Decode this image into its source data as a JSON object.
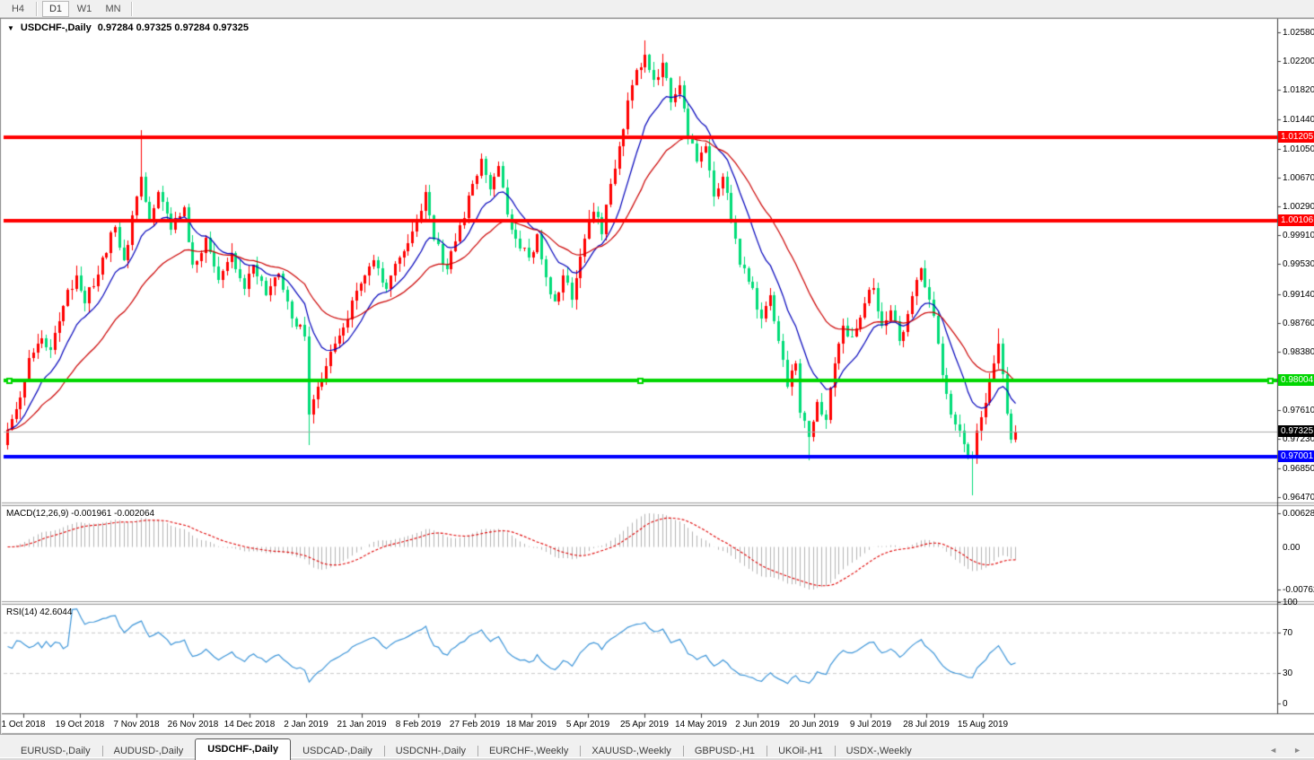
{
  "toolbar": {
    "timeframes": [
      "H4",
      "D1",
      "W1",
      "MN"
    ],
    "active": "D1"
  },
  "title": {
    "collapse_icon": "▼",
    "symbol": "USDCHF-,Daily",
    "quote": "0.97284 0.97325 0.97284 0.97325"
  },
  "price_axis": {
    "labels": [
      {
        "text": "1.02580",
        "price": 1.0258
      },
      {
        "text": "1.02200",
        "price": 1.022
      },
      {
        "text": "1.01820",
        "price": 1.0182
      },
      {
        "text": "1.01440",
        "price": 1.0144
      },
      {
        "text": "1.01050",
        "price": 1.0105
      },
      {
        "text": "1.00670",
        "price": 1.0067
      },
      {
        "text": "1.00290",
        "price": 1.0029
      },
      {
        "text": "0.99910",
        "price": 0.9991
      },
      {
        "text": "0.99530",
        "price": 0.9953
      },
      {
        "text": "0.99140",
        "price": 0.9914
      },
      {
        "text": "0.98760",
        "price": 0.9876
      },
      {
        "text": "0.98380",
        "price": 0.9838
      },
      {
        "text": "0.97610",
        "price": 0.9761
      },
      {
        "text": "0.97230",
        "price": 0.9723
      },
      {
        "text": "0.96850",
        "price": 0.9685
      },
      {
        "text": "0.96470",
        "price": 0.9647
      }
    ]
  },
  "price_tags": [
    {
      "text": "1.01205",
      "price": 1.01205,
      "bg": "#ff0000",
      "fg": "#ffffff"
    },
    {
      "text": "1.00106",
      "price": 1.00106,
      "bg": "#ff0000",
      "fg": "#ffffff"
    },
    {
      "text": "0.98004",
      "price": 0.98004,
      "bg": "#00d600",
      "fg": "#ffffff"
    },
    {
      "text": "0.97001",
      "price": 0.97001,
      "bg": "#0000ff",
      "fg": "#ffffff"
    },
    {
      "text": "0.97325",
      "price": 0.97325,
      "bg": "#000000",
      "fg": "#ffffff"
    }
  ],
  "hlines": [
    {
      "price": 1.01205,
      "color": "#ff0000",
      "width": 4,
      "selected": false
    },
    {
      "price": 1.00106,
      "color": "#ff0000",
      "width": 4,
      "selected": false
    },
    {
      "price": 0.98004,
      "color": "#00d600",
      "width": 4,
      "selected": true
    },
    {
      "price": 0.97001,
      "color": "#0000ff",
      "width": 4,
      "selected": false
    }
  ],
  "current_price_line": {
    "price": 0.97325,
    "color": "#aaaaaa"
  },
  "date_axis": [
    "1 Oct 2018",
    "19 Oct 2018",
    "7 Nov 2018",
    "26 Nov 2018",
    "14 Dec 2018",
    "2 Jan 2019",
    "21 Jan 2019",
    "8 Feb 2019",
    "27 Feb 2019",
    "18 Mar 2019",
    "5 Apr 2019",
    "25 Apr 2019",
    "14 May 2019",
    "2 Jun 2019",
    "20 Jun 2019",
    "9 Jul 2019",
    "28 Jul 2019",
    "15 Aug 2019"
  ],
  "indicators": {
    "macd": {
      "name": "MACD(12,26,9)",
      "main": "-0.001961",
      "signal": "-0.002064",
      "fast": 12,
      "slow": 26,
      "signal_period": 9,
      "axis_max": "0.006286",
      "axis_zero": "0.00",
      "axis_min": "-0.00762",
      "histogram_color": "#b4b4b4",
      "signal_color": "#e00000"
    },
    "rsi": {
      "name": "RSI(14)",
      "value": "42.6044",
      "period": 14,
      "axis": [
        "100",
        "70",
        "30",
        "0"
      ],
      "levels": [
        70,
        30
      ],
      "color": "#3e96d9",
      "level_color": "#c9c9c9"
    }
  },
  "chart_data": {
    "type": "candlestick",
    "symbol": "USDCHF",
    "timeframe": "Daily",
    "bull_color": "#ff0000",
    "bear_color": "#00dc78",
    "ma_lines": [
      {
        "period": 12,
        "color": "#0000bb"
      },
      {
        "period": 30,
        "color": "#cc0000"
      }
    ],
    "n_candles": 235,
    "visible_price_range": [
      0.9636,
      1.0272
    ],
    "close_anchors": [
      [
        0,
        0.9735
      ],
      [
        2,
        0.9762
      ],
      [
        5,
        0.983
      ],
      [
        8,
        0.9856
      ],
      [
        10,
        0.984
      ],
      [
        13,
        0.9898
      ],
      [
        16,
        0.9938
      ],
      [
        18,
        0.9902
      ],
      [
        22,
        0.9962
      ],
      [
        25,
        1.0002
      ],
      [
        27,
        0.9958
      ],
      [
        30,
        1.0042
      ],
      [
        31,
        1.0068
      ],
      [
        33,
        1.0012
      ],
      [
        35,
        1.0048
      ],
      [
        38,
        0.9998
      ],
      [
        41,
        1.0028
      ],
      [
        43,
        0.9952
      ],
      [
        46,
        0.9988
      ],
      [
        49,
        0.9932
      ],
      [
        52,
        0.9968
      ],
      [
        55,
        0.992
      ],
      [
        57,
        0.9952
      ],
      [
        60,
        0.9912
      ],
      [
        63,
        0.994
      ],
      [
        66,
        0.9882
      ],
      [
        69,
        0.9858
      ],
      [
        70,
        0.9755
      ],
      [
        72,
        0.9792
      ],
      [
        75,
        0.9838
      ],
      [
        78,
        0.987
      ],
      [
        80,
        0.9905
      ],
      [
        82,
        0.9928
      ],
      [
        85,
        0.9958
      ],
      [
        88,
        0.992
      ],
      [
        91,
        0.9962
      ],
      [
        95,
        1.0012
      ],
      [
        97,
        1.0048
      ],
      [
        99,
        0.9985
      ],
      [
        102,
        0.9946
      ],
      [
        105,
        1.0004
      ],
      [
        108,
        1.0058
      ],
      [
        110,
        1.0092
      ],
      [
        112,
        1.0052
      ],
      [
        114,
        1.0082
      ],
      [
        116,
        1.0018
      ],
      [
        118,
        0.9986
      ],
      [
        121,
        0.9962
      ],
      [
        123,
        0.9992
      ],
      [
        125,
        0.9936
      ],
      [
        127,
        0.9904
      ],
      [
        129,
        0.9938
      ],
      [
        131,
        0.9906
      ],
      [
        134,
        0.9986
      ],
      [
        136,
        1.0022
      ],
      [
        138,
        0.9992
      ],
      [
        140,
        1.0058
      ],
      [
        142,
        1.0108
      ],
      [
        144,
        1.0168
      ],
      [
        146,
        1.0208
      ],
      [
        148,
        1.0228
      ],
      [
        150,
        1.0196
      ],
      [
        152,
        1.0218
      ],
      [
        154,
        1.0166
      ],
      [
        156,
        1.0188
      ],
      [
        158,
        1.0122
      ],
      [
        160,
        1.0088
      ],
      [
        162,
        1.0108
      ],
      [
        164,
        1.0042
      ],
      [
        166,
        1.0068
      ],
      [
        168,
        1.0012
      ],
      [
        170,
        0.9952
      ],
      [
        173,
        0.9922
      ],
      [
        175,
        0.9882
      ],
      [
        177,
        0.9912
      ],
      [
        179,
        0.9852
      ],
      [
        181,
        0.9792
      ],
      [
        183,
        0.9822
      ],
      [
        184,
        0.9758
      ],
      [
        186,
        0.9726
      ],
      [
        188,
        0.9772
      ],
      [
        190,
        0.9748
      ],
      [
        192,
        0.9822
      ],
      [
        194,
        0.9872
      ],
      [
        196,
        0.9858
      ],
      [
        199,
        0.9902
      ],
      [
        201,
        0.9922
      ],
      [
        203,
        0.9872
      ],
      [
        205,
        0.9892
      ],
      [
        207,
        0.9852
      ],
      [
        209,
        0.9888
      ],
      [
        211,
        0.9932
      ],
      [
        212,
        0.9948
      ],
      [
        214,
        0.9906
      ],
      [
        216,
        0.9848
      ],
      [
        218,
        0.9782
      ],
      [
        220,
        0.9742
      ],
      [
        222,
        0.9716
      ],
      [
        224,
        0.9698
      ],
      [
        226,
        0.9752
      ],
      [
        228,
        0.9802
      ],
      [
        230,
        0.9848
      ],
      [
        231,
        0.9808
      ],
      [
        232,
        0.9756
      ],
      [
        233,
        0.9722
      ],
      [
        234,
        0.97325
      ]
    ],
    "extremes": [
      {
        "i": 31,
        "high": 1.0129
      },
      {
        "i": 70,
        "low": 0.9715
      },
      {
        "i": 148,
        "high": 1.0247
      },
      {
        "i": 186,
        "low": 0.9695
      },
      {
        "i": 224,
        "low": 0.965
      },
      {
        "i": 230,
        "high": 0.9868
      }
    ]
  },
  "tabs": {
    "items": [
      "EURUSD-,Daily",
      "AUDUSD-,Daily",
      "USDCHF-,Daily",
      "USDCAD-,Daily",
      "USDCNH-,Daily",
      "EURCHF-,Weekly",
      "XAUUSD-,Weekly",
      "GBPUSD-,H1",
      "UKOil-,H1",
      "USDX-,Weekly"
    ],
    "active_index": 2,
    "nav_left": "◄",
    "nav_right": "►"
  }
}
